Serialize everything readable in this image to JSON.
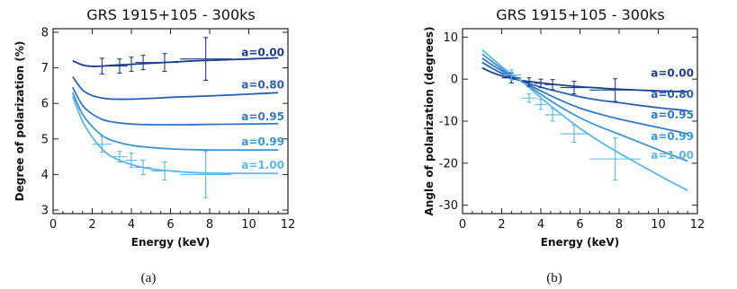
{
  "chart_data": [
    {
      "panel": "a",
      "type": "line",
      "title": "GRS 1915+105 - 300ks",
      "xlabel": "Energy (keV)",
      "ylabel": "Degree of polarization (%)",
      "caption": "(a)",
      "xlim": [
        0,
        12
      ],
      "ylim": [
        2.9,
        8.1
      ],
      "xticks": [
        0,
        2,
        4,
        6,
        8,
        10,
        12
      ],
      "yticks": [
        3,
        4,
        5,
        6,
        7,
        8
      ],
      "x": [
        1.0,
        1.5,
        2.0,
        2.5,
        3.0,
        4.0,
        5.0,
        6.0,
        7.0,
        8.0,
        10.0,
        11.5
      ],
      "series": [
        {
          "name": "a=0.00",
          "color": "#1a3e8c",
          "values": [
            7.2,
            7.08,
            7.04,
            7.05,
            7.07,
            7.1,
            7.13,
            7.16,
            7.19,
            7.21,
            7.25,
            7.28
          ]
        },
        {
          "name": "a=0.80",
          "color": "#2d5fb0",
          "values": [
            6.75,
            6.38,
            6.22,
            6.15,
            6.12,
            6.12,
            6.14,
            6.17,
            6.19,
            6.21,
            6.26,
            6.3
          ]
        },
        {
          "name": "a=0.95",
          "color": "#3278c4",
          "values": [
            6.45,
            5.95,
            5.7,
            5.55,
            5.48,
            5.42,
            5.4,
            5.4,
            5.4,
            5.41,
            5.42,
            5.43
          ]
        },
        {
          "name": "a=0.99",
          "color": "#3a94d6",
          "values": [
            6.3,
            5.7,
            5.35,
            5.1,
            4.96,
            4.82,
            4.76,
            4.72,
            4.7,
            4.69,
            4.69,
            4.69
          ]
        },
        {
          "name": "a=1.00",
          "color": "#5bb6e8",
          "values": [
            6.2,
            5.5,
            5.05,
            4.72,
            4.5,
            4.28,
            4.16,
            4.1,
            4.06,
            4.04,
            4.03,
            4.03
          ]
        }
      ],
      "error_points": [
        {
          "series": "a=0.00",
          "color": "#1a3e8c",
          "points": [
            {
              "x": 2.5,
              "y": 7.05,
              "xerr": 0.5,
              "yerr": 0.22
            },
            {
              "x": 3.4,
              "y": 7.05,
              "xerr": 0.4,
              "yerr": 0.2
            },
            {
              "x": 4.0,
              "y": 7.1,
              "xerr": 0.3,
              "yerr": 0.2
            },
            {
              "x": 4.6,
              "y": 7.15,
              "xerr": 0.4,
              "yerr": 0.2
            },
            {
              "x": 5.7,
              "y": 7.15,
              "xerr": 0.7,
              "yerr": 0.25
            },
            {
              "x": 7.8,
              "y": 7.25,
              "xerr": 1.3,
              "yerr": 0.6
            }
          ]
        },
        {
          "series": "a=1.00",
          "color": "#5bb6e8",
          "points": [
            {
              "x": 2.5,
              "y": 4.85,
              "xerr": 0.5,
              "yerr": 0.22
            },
            {
              "x": 3.4,
              "y": 4.5,
              "xerr": 0.4,
              "yerr": 0.15
            },
            {
              "x": 4.0,
              "y": 4.4,
              "xerr": 0.3,
              "yerr": 0.2
            },
            {
              "x": 4.6,
              "y": 4.2,
              "xerr": 0.4,
              "yerr": 0.2
            },
            {
              "x": 5.7,
              "y": 4.1,
              "xerr": 0.7,
              "yerr": 0.25
            },
            {
              "x": 7.8,
              "y": 4.0,
              "xerr": 1.3,
              "yerr": 0.65
            }
          ]
        }
      ]
    },
    {
      "panel": "b",
      "type": "line",
      "title": "GRS 1915+105 - 300ks",
      "xlabel": "Energy (keV)",
      "ylabel": "Angle of polarization (degrees)",
      "caption": "(b)",
      "xlim": [
        0,
        12
      ],
      "ylim": [
        -32,
        12
      ],
      "xticks": [
        0,
        2,
        4,
        6,
        8,
        10,
        12
      ],
      "yticks": [
        -30,
        -20,
        -10,
        0,
        10
      ],
      "x": [
        1.0,
        1.5,
        2.0,
        2.5,
        3.0,
        4.0,
        5.0,
        6.0,
        7.0,
        8.0,
        10.0,
        11.5
      ],
      "series": [
        {
          "name": "a=0.00",
          "color": "#1a3e8c",
          "values": [
            2.7,
            1.6,
            0.8,
            0.2,
            -0.3,
            -0.9,
            -1.4,
            -1.8,
            -2.1,
            -2.4,
            -2.8,
            -3.0
          ]
        },
        {
          "name": "a=0.80",
          "color": "#2d5fb0",
          "values": [
            4.0,
            2.6,
            1.4,
            0.5,
            -0.4,
            -1.9,
            -3.1,
            -4.2,
            -5.0,
            -5.6,
            -6.8,
            -7.5
          ]
        },
        {
          "name": "a=0.95",
          "color": "#3278c4",
          "values": [
            5.0,
            3.4,
            2.0,
            0.8,
            -0.4,
            -2.8,
            -5.0,
            -6.9,
            -8.3,
            -9.5,
            -11.5,
            -13.0
          ]
        },
        {
          "name": "a=0.99",
          "color": "#3a94d6",
          "values": [
            6.0,
            4.2,
            2.5,
            1.0,
            -0.4,
            -3.6,
            -6.6,
            -9.2,
            -11.3,
            -13.1,
            -16.8,
            -19.5
          ]
        },
        {
          "name": "a=1.00",
          "color": "#5bb6e8",
          "values": [
            7.0,
            5.0,
            3.0,
            1.2,
            -0.4,
            -4.4,
            -8.2,
            -11.7,
            -14.8,
            -17.6,
            -22.8,
            -26.5
          ]
        }
      ],
      "error_points": [
        {
          "series": "a=0.00",
          "color": "#1a3e8c",
          "points": [
            {
              "x": 2.5,
              "y": 0.3,
              "xerr": 0.5,
              "yerr": 1.2
            },
            {
              "x": 3.4,
              "y": -0.7,
              "xerr": 0.4,
              "yerr": 1.0
            },
            {
              "x": 4.0,
              "y": -1.0,
              "xerr": 0.3,
              "yerr": 1.0
            },
            {
              "x": 4.6,
              "y": -1.3,
              "xerr": 0.4,
              "yerr": 1.2
            },
            {
              "x": 5.7,
              "y": -2.0,
              "xerr": 0.7,
              "yerr": 1.5
            },
            {
              "x": 7.8,
              "y": -2.6,
              "xerr": 1.3,
              "yerr": 2.7
            }
          ]
        },
        {
          "series": "a=1.00",
          "color": "#5bb6e8",
          "points": [
            {
              "x": 2.5,
              "y": 1.0,
              "xerr": 0.5,
              "yerr": 1.2
            },
            {
              "x": 3.4,
              "y": -4.5,
              "xerr": 0.4,
              "yerr": 1.0
            },
            {
              "x": 4.0,
              "y": -6.0,
              "xerr": 0.3,
              "yerr": 1.2
            },
            {
              "x": 4.6,
              "y": -8.5,
              "xerr": 0.4,
              "yerr": 1.5
            },
            {
              "x": 5.7,
              "y": -13.0,
              "xerr": 0.7,
              "yerr": 2.0
            },
            {
              "x": 7.8,
              "y": -19.0,
              "xerr": 1.3,
              "yerr": 5.0
            }
          ]
        }
      ]
    }
  ]
}
